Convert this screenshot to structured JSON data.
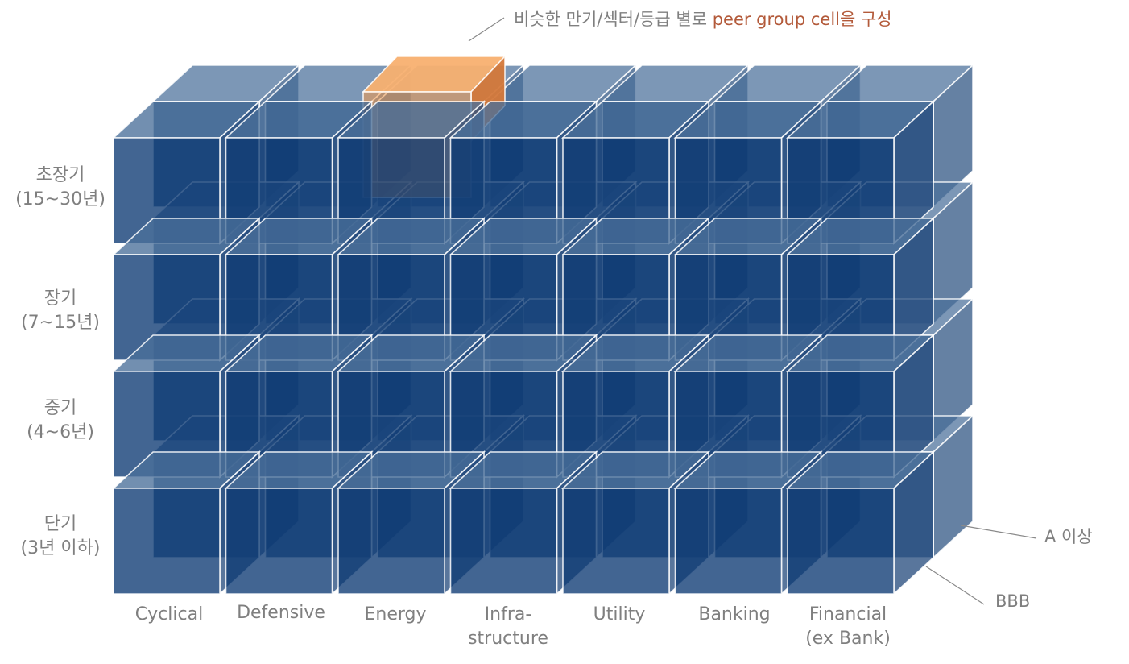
{
  "callout": {
    "text": "비슷한 만기/섹터/등급 별로 ",
    "highlight": "peer group cell을 구성"
  },
  "rows": [
    {
      "line1": "초장기",
      "line2": "(15~30년)"
    },
    {
      "line1": "장기",
      "line2": "(7~15년)"
    },
    {
      "line1": "중기",
      "line2": "(4~6년)"
    },
    {
      "line1": "단기",
      "line2": "(3년 이하)"
    }
  ],
  "columns": [
    {
      "line1": "Cyclical",
      "line2": ""
    },
    {
      "line1": "Defensive",
      "line2": ""
    },
    {
      "line1": "Energy",
      "line2": ""
    },
    {
      "line1": "Infra-",
      "line2": "structure"
    },
    {
      "line1": "Utility",
      "line2": ""
    },
    {
      "line1": "Banking",
      "line2": ""
    },
    {
      "line1": "Financial",
      "line2": "(ex Bank)"
    }
  ],
  "grades": {
    "back": "A 이상",
    "front": "BBB"
  },
  "colors": {
    "cube_fill": "#0d3a73",
    "cube_top": "#4a6f9a",
    "cube_side": "#2a5080",
    "highlight_cube": "#f59a4a",
    "highlight_top": "#f8b070",
    "highlight_side": "#d4783a",
    "label_gray": "#7f7f7f",
    "highlight_text": "#b35a3a"
  }
}
